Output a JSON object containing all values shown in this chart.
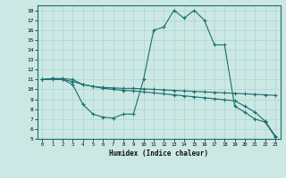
{
  "xlabel": "Humidex (Indice chaleur)",
  "bg_color": "#cce8e4",
  "line_color": "#1a6e6e",
  "grid_color": "#aad4ce",
  "xlim": [
    -0.5,
    23.5
  ],
  "ylim": [
    5,
    18.5
  ],
  "xticks": [
    0,
    1,
    2,
    3,
    4,
    5,
    6,
    7,
    8,
    9,
    10,
    11,
    12,
    13,
    14,
    15,
    16,
    17,
    18,
    19,
    20,
    21,
    22,
    23
  ],
  "yticks": [
    5,
    6,
    7,
    8,
    9,
    10,
    11,
    12,
    13,
    14,
    15,
    16,
    17,
    18
  ],
  "curve1_x": [
    0,
    1,
    2,
    3,
    4,
    5,
    6,
    7,
    8,
    9,
    10,
    11,
    12,
    13,
    14,
    15,
    16,
    17,
    18,
    19,
    20,
    21,
    22,
    23
  ],
  "curve1_y": [
    11.0,
    11.1,
    11.1,
    11.0,
    10.5,
    10.3,
    10.2,
    10.15,
    10.1,
    10.1,
    10.05,
    10.0,
    9.95,
    9.9,
    9.85,
    9.8,
    9.75,
    9.7,
    9.65,
    9.6,
    9.55,
    9.5,
    9.45,
    9.4
  ],
  "curve2_x": [
    0,
    1,
    2,
    3,
    4,
    5,
    6,
    7,
    8,
    9,
    10,
    11,
    12,
    13,
    14,
    15,
    16,
    17,
    18,
    19,
    20,
    21,
    22,
    23
  ],
  "curve2_y": [
    11.0,
    11.1,
    11.0,
    10.5,
    8.5,
    7.5,
    7.2,
    7.1,
    7.5,
    7.5,
    11.0,
    16.0,
    16.3,
    18.0,
    17.2,
    18.0,
    17.0,
    14.5,
    14.5,
    8.3,
    7.7,
    7.0,
    6.7,
    5.2
  ],
  "curve3_x": [
    0,
    1,
    2,
    3,
    4,
    5,
    6,
    7,
    8,
    9,
    10,
    11,
    12,
    13,
    14,
    15,
    16,
    17,
    18,
    19,
    20,
    21,
    22,
    23
  ],
  "curve3_y": [
    11.0,
    11.0,
    11.0,
    10.8,
    10.5,
    10.3,
    10.1,
    10.0,
    9.9,
    9.85,
    9.75,
    9.65,
    9.55,
    9.45,
    9.35,
    9.25,
    9.15,
    9.05,
    8.95,
    8.85,
    8.3,
    7.7,
    6.8,
    5.3
  ]
}
